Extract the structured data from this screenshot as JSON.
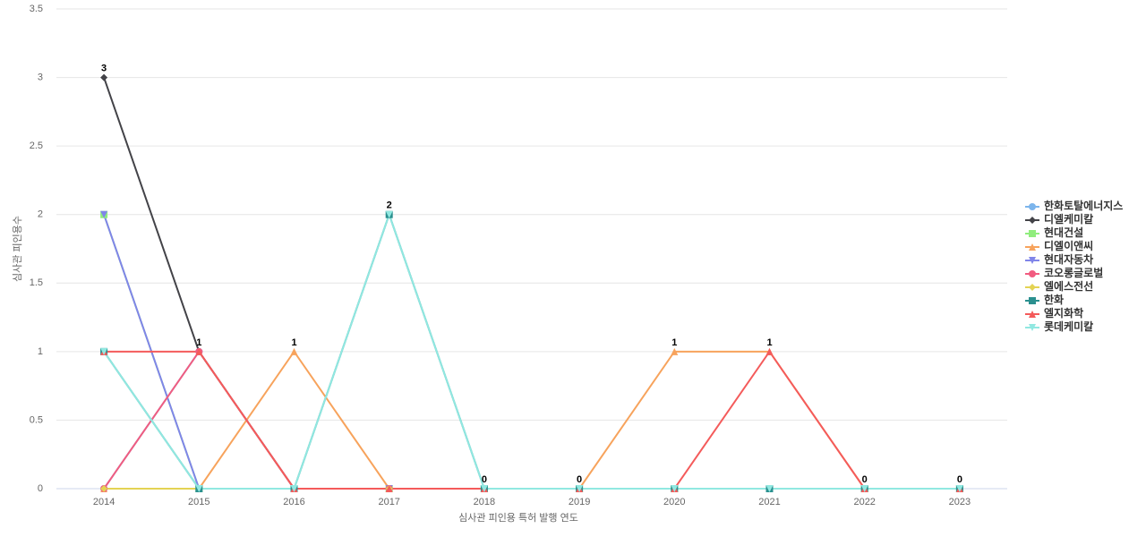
{
  "chart_data": {
    "type": "line",
    "x_label": "심사관 피인용 특허 발행 연도",
    "y_label": "심사관 피인용수",
    "categories": [
      "2014",
      "2015",
      "2016",
      "2017",
      "2018",
      "2019",
      "2020",
      "2021",
      "2022",
      "2023"
    ],
    "ylim": [
      0,
      3.5
    ],
    "yticks": [
      0,
      0.5,
      1,
      1.5,
      2,
      2.5,
      3,
      3.5
    ],
    "grid": true,
    "legend": "right",
    "series": [
      {
        "name": "한화토탈에너지스",
        "color": "#7cb5ec",
        "values": [
          0,
          1,
          0,
          0,
          0,
          0,
          0,
          0,
          0,
          0
        ]
      },
      {
        "name": "디엘케미칼",
        "color": "#434348",
        "values": [
          3,
          1,
          0,
          0,
          0,
          0,
          0,
          0,
          0,
          0
        ]
      },
      {
        "name": "현대건설",
        "color": "#90ed7d",
        "values": [
          2,
          0,
          0,
          0,
          0,
          0,
          0,
          0,
          0,
          0
        ]
      },
      {
        "name": "디엘이앤씨",
        "color": "#f7a35c",
        "values": [
          0,
          0,
          1,
          0,
          0,
          0,
          1,
          1,
          0,
          0
        ]
      },
      {
        "name": "현대자동차",
        "color": "#8085e9",
        "values": [
          2,
          0,
          0,
          0,
          0,
          0,
          0,
          0,
          0,
          0
        ]
      },
      {
        "name": "코오롱글로벌",
        "color": "#f15c80",
        "values": [
          0,
          1,
          0,
          0,
          0,
          0,
          0,
          0,
          0,
          0
        ]
      },
      {
        "name": "엘에스전선",
        "color": "#e4d354",
        "values": [
          0,
          0,
          0,
          0,
          0,
          0,
          0,
          0,
          0,
          0
        ]
      },
      {
        "name": "한화",
        "color": "#2b908f",
        "values": [
          1,
          0,
          0,
          2,
          0,
          0,
          0,
          0,
          0,
          0
        ]
      },
      {
        "name": "엘지화학",
        "color": "#f45b5b",
        "values": [
          1,
          1,
          0,
          0,
          0,
          0,
          0,
          1,
          0,
          0
        ]
      },
      {
        "name": "롯데케미칼",
        "color": "#91e8e1",
        "values": [
          1,
          0,
          0,
          2,
          0,
          0,
          0,
          0,
          0,
          0
        ]
      }
    ]
  }
}
